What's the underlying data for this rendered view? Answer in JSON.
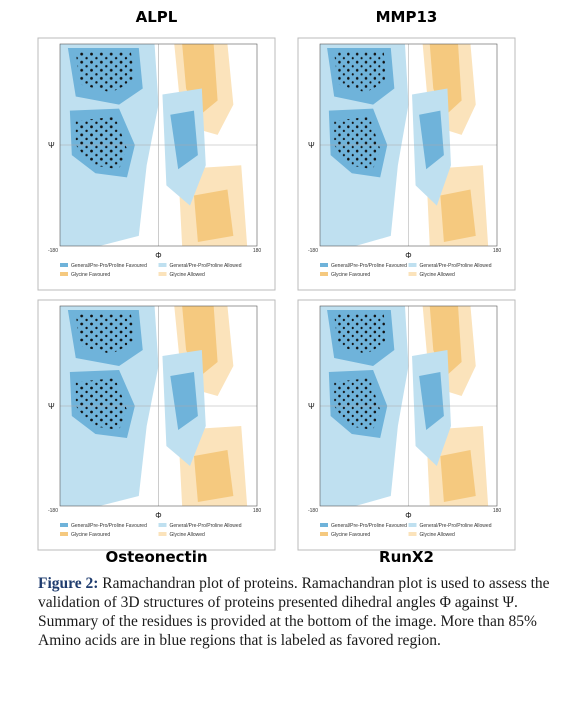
{
  "figure": {
    "panels": [
      {
        "title": "ALPL"
      },
      {
        "title": "MMP13"
      },
      {
        "title": "Osteonectin"
      },
      {
        "title": "RunX2"
      }
    ],
    "axis": {
      "psi": "Ψ",
      "phi": "Φ",
      "min": "-180",
      "max": "180"
    },
    "legend": [
      "General/Pre-Pro/Proline Favoured",
      "General/Pre-Pro/Proline Allowed",
      "Glycine Favoured",
      "Glycine Allowed"
    ],
    "caption": {
      "label": "Figure 2:",
      "text": "Ramachandran plot of proteins. Ramachandran plot is used to assess the validation of 3D structures of proteins presented dihedral angles Φ against Ψ. Summary of the residues is provided at the bottom of the image. More than 85% Amino acids are in blue regions that is labeled as favored region."
    }
  }
}
